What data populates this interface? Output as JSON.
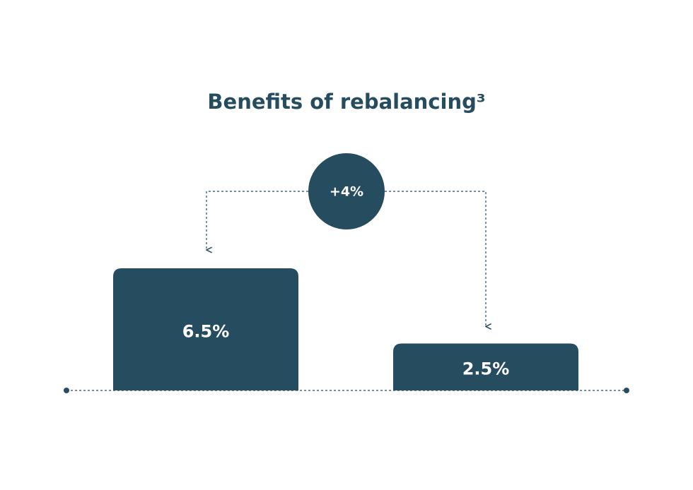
{
  "chart_data": {
    "type": "bar",
    "title": "Benefits of rebalancing³",
    "categories": [
      null,
      null
    ],
    "values": [
      6.5,
      2.5
    ],
    "value_labels": [
      "6.5%",
      "2.5%"
    ],
    "annotation": "+4%",
    "color": "#264c5f"
  }
}
